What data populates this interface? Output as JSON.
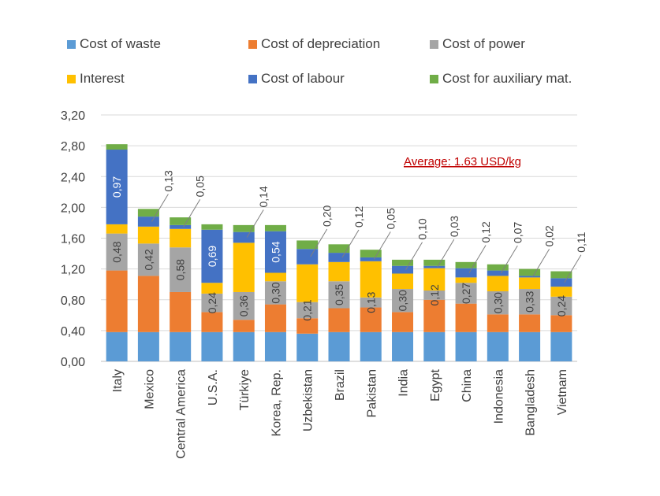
{
  "chart_data": {
    "type": "bar",
    "stacked": true,
    "categories": [
      "Italy",
      "Mexico",
      "Central America",
      "U.S.A.",
      "Türkiye",
      "Korea, Rep.",
      "Uzbekistan",
      "Brazil",
      "Pakistan",
      "India",
      "Egypt",
      "China",
      "Indonesia",
      "Bangladesh",
      "Vietnam"
    ],
    "series": [
      {
        "name": "Cost of waste",
        "color": "#5B9BD5",
        "values": [
          0.38,
          0.38,
          0.38,
          0.38,
          0.38,
          0.38,
          0.36,
          0.38,
          0.38,
          0.38,
          0.38,
          0.38,
          0.38,
          0.38,
          0.38
        ]
      },
      {
        "name": "Cost of depreciation",
        "color": "#ED7D31",
        "values": [
          0.8,
          0.73,
          0.52,
          0.26,
          0.16,
          0.36,
          0.2,
          0.31,
          0.32,
          0.26,
          0.42,
          0.37,
          0.23,
          0.23,
          0.22
        ]
      },
      {
        "name": "Cost of power",
        "color": "#A5A5A5",
        "values": [
          0.48,
          0.42,
          0.58,
          0.24,
          0.36,
          0.3,
          0.21,
          0.35,
          0.13,
          0.3,
          0.12,
          0.27,
          0.3,
          0.33,
          0.24
        ]
      },
      {
        "name": "Interest",
        "color": "#FFC000",
        "values": [
          0.12,
          0.22,
          0.24,
          0.14,
          0.64,
          0.11,
          0.49,
          0.25,
          0.47,
          0.2,
          0.29,
          0.07,
          0.2,
          0.15,
          0.13
        ]
      },
      {
        "name": "Cost of labour",
        "color": "#4472C4",
        "values": [
          0.97,
          0.13,
          0.05,
          0.69,
          0.14,
          0.54,
          0.2,
          0.12,
          0.05,
          0.1,
          0.03,
          0.12,
          0.07,
          0.02,
          0.11
        ]
      },
      {
        "name": "Cost for auxiliary mat.",
        "color": "#70AD47",
        "values": [
          0.07,
          0.1,
          0.1,
          0.07,
          0.09,
          0.08,
          0.11,
          0.11,
          0.1,
          0.08,
          0.08,
          0.08,
          0.08,
          0.09,
          0.09
        ]
      }
    ],
    "data_labels": [
      {
        "category": 0,
        "series": 2,
        "text": "0,48",
        "color": "#404040",
        "callout": false
      },
      {
        "category": 0,
        "series": 4,
        "text": "0,97",
        "color": "#ffffff",
        "callout": false
      },
      {
        "category": 1,
        "series": 2,
        "text": "0,42",
        "color": "#404040",
        "callout": false
      },
      {
        "category": 1,
        "series": 4,
        "text": "0,13",
        "color": "#404040",
        "callout": true
      },
      {
        "category": 2,
        "series": 2,
        "text": "0,58",
        "color": "#404040",
        "callout": false
      },
      {
        "category": 2,
        "series": 4,
        "text": "0,05",
        "color": "#404040",
        "callout": true
      },
      {
        "category": 3,
        "series": 2,
        "text": "0,24",
        "color": "#404040",
        "callout": false
      },
      {
        "category": 3,
        "series": 4,
        "text": "0,69",
        "color": "#ffffff",
        "callout": false
      },
      {
        "category": 4,
        "series": 2,
        "text": "0,36",
        "color": "#404040",
        "callout": false
      },
      {
        "category": 4,
        "series": 4,
        "text": "0,14",
        "color": "#404040",
        "callout": true
      },
      {
        "category": 5,
        "series": 2,
        "text": "0,30",
        "color": "#404040",
        "callout": false
      },
      {
        "category": 5,
        "series": 4,
        "text": "0,54",
        "color": "#ffffff",
        "callout": false
      },
      {
        "category": 6,
        "series": 2,
        "text": "0,21",
        "color": "#404040",
        "callout": false
      },
      {
        "category": 6,
        "series": 4,
        "text": "0,20",
        "color": "#404040",
        "callout": true
      },
      {
        "category": 7,
        "series": 2,
        "text": "0,35",
        "color": "#404040",
        "callout": false
      },
      {
        "category": 7,
        "series": 4,
        "text": "0,12",
        "color": "#404040",
        "callout": true
      },
      {
        "category": 8,
        "series": 2,
        "text": "0,13",
        "color": "#404040",
        "callout": false
      },
      {
        "category": 8,
        "series": 4,
        "text": "0,05",
        "color": "#404040",
        "callout": true
      },
      {
        "category": 9,
        "series": 2,
        "text": "0,30",
        "color": "#404040",
        "callout": false
      },
      {
        "category": 9,
        "series": 4,
        "text": "0,10",
        "color": "#404040",
        "callout": true
      },
      {
        "category": 10,
        "series": 2,
        "text": "0,12",
        "color": "#404040",
        "callout": false
      },
      {
        "category": 10,
        "series": 4,
        "text": "0,03",
        "color": "#404040",
        "callout": true
      },
      {
        "category": 11,
        "series": 2,
        "text": "0,27",
        "color": "#404040",
        "callout": false
      },
      {
        "category": 11,
        "series": 4,
        "text": "0,12",
        "color": "#404040",
        "callout": true
      },
      {
        "category": 12,
        "series": 2,
        "text": "0,30",
        "color": "#404040",
        "callout": false
      },
      {
        "category": 12,
        "series": 4,
        "text": "0,07",
        "color": "#404040",
        "callout": true
      },
      {
        "category": 13,
        "series": 2,
        "text": "0,33",
        "color": "#404040",
        "callout": false
      },
      {
        "category": 13,
        "series": 4,
        "text": "0,02",
        "color": "#404040",
        "callout": true
      },
      {
        "category": 14,
        "series": 2,
        "text": "0,24",
        "color": "#404040",
        "callout": false
      },
      {
        "category": 14,
        "series": 4,
        "text": "0,11",
        "color": "#404040",
        "callout": true
      }
    ],
    "y_ticks": [
      "0,00",
      "0,40",
      "0,80",
      "1,20",
      "1,60",
      "2,00",
      "2,40",
      "2,80",
      "3,20"
    ],
    "ylim": [
      0,
      3.2
    ],
    "grid": true,
    "legend_position": "top",
    "annotation": {
      "text": "Average: 1.63 USD/kg",
      "color": "#C00000"
    },
    "title": "",
    "xlabel": "",
    "ylabel": ""
  }
}
